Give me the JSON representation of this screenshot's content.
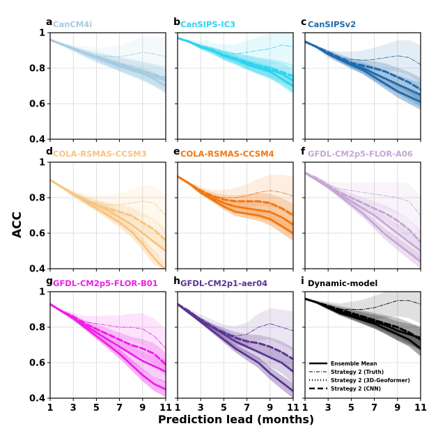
{
  "figure": {
    "ylabel": "ACC",
    "xlabel": "Prediction lead (months)",
    "x_ticks": [
      "1",
      "3",
      "5",
      "7",
      "9",
      "11"
    ],
    "y_ticks": [
      "0.4",
      "0.6",
      "0.8",
      "1"
    ],
    "legend": {
      "ensemble": "Ensemble Mean",
      "truth": "Strategy 2 (Truth)",
      "geo": "Strategy 2 (3D-Geoformer)",
      "cnn": "Strategy 2 (CNN)"
    }
  },
  "chart_data": [
    {
      "type": "line",
      "letter": "a",
      "title": "CanCM4i",
      "color": "#a6cbe0",
      "x": [
        1,
        2,
        3,
        4,
        5,
        6,
        7,
        8,
        9,
        10,
        11
      ],
      "xlim": [
        1,
        11
      ],
      "ylim": [
        0.4,
        1.0
      ],
      "series": [
        {
          "name": "Ensemble Mean",
          "values": [
            0.96,
            0.935,
            0.91,
            0.885,
            0.86,
            0.835,
            0.81,
            0.79,
            0.77,
            0.74,
            0.7
          ]
        },
        {
          "name": "Strategy 2 (Truth)",
          "values": [
            0.96,
            0.935,
            0.91,
            0.89,
            0.87,
            0.865,
            0.865,
            0.875,
            0.89,
            0.88,
            0.865
          ]
        },
        {
          "name": "Strategy 2 (3D-Geoformer)",
          "values": [
            0.96,
            0.935,
            0.91,
            0.885,
            0.86,
            0.84,
            0.82,
            0.8,
            0.78,
            0.755,
            0.73
          ]
        },
        {
          "name": "Strategy 2 (CNN)",
          "values": [
            0.96,
            0.935,
            0.91,
            0.885,
            0.865,
            0.845,
            0.825,
            0.805,
            0.785,
            0.765,
            0.745
          ]
        }
      ]
    },
    {
      "type": "line",
      "letter": "b",
      "title": "CanSIPS-IC3",
      "color": "#2fd3ef",
      "x": [
        1,
        2,
        3,
        4,
        5,
        6,
        7,
        8,
        9,
        10,
        11
      ],
      "xlim": [
        1,
        11
      ],
      "ylim": [
        0.4,
        1.0
      ],
      "series": [
        {
          "name": "Ensemble Mean",
          "values": [
            0.97,
            0.95,
            0.92,
            0.9,
            0.87,
            0.85,
            0.82,
            0.8,
            0.78,
            0.74,
            0.7
          ]
        },
        {
          "name": "Strategy 2 (Truth)",
          "values": [
            0.97,
            0.95,
            0.93,
            0.91,
            0.89,
            0.88,
            0.89,
            0.9,
            0.91,
            0.93,
            0.92
          ]
        },
        {
          "name": "Strategy 2 (3D-Geoformer)",
          "values": [
            0.97,
            0.95,
            0.92,
            0.9,
            0.87,
            0.85,
            0.83,
            0.81,
            0.79,
            0.77,
            0.73
          ]
        },
        {
          "name": "Strategy 2 (CNN)",
          "values": [
            0.97,
            0.95,
            0.92,
            0.9,
            0.875,
            0.855,
            0.835,
            0.815,
            0.8,
            0.78,
            0.755
          ]
        }
      ]
    },
    {
      "type": "line",
      "letter": "c",
      "title": "CanSIPSv2",
      "color": "#1f6aab",
      "x": [
        1,
        2,
        3,
        4,
        5,
        6,
        7,
        8,
        9,
        10,
        11
      ],
      "xlim": [
        1,
        11
      ],
      "ylim": [
        0.4,
        1.0
      ],
      "series": [
        {
          "name": "Ensemble Mean",
          "values": [
            0.95,
            0.92,
            0.88,
            0.85,
            0.82,
            0.79,
            0.75,
            0.71,
            0.67,
            0.64,
            0.61
          ]
        },
        {
          "name": "Strategy 2 (Truth)",
          "values": [
            0.95,
            0.92,
            0.88,
            0.86,
            0.85,
            0.845,
            0.85,
            0.86,
            0.87,
            0.86,
            0.82
          ]
        },
        {
          "name": "Strategy 2 (3D-Geoformer)",
          "values": [
            0.95,
            0.92,
            0.88,
            0.85,
            0.82,
            0.8,
            0.77,
            0.74,
            0.71,
            0.68,
            0.65
          ]
        },
        {
          "name": "Strategy 2 (CNN)",
          "values": [
            0.95,
            0.92,
            0.89,
            0.86,
            0.83,
            0.815,
            0.8,
            0.78,
            0.75,
            0.72,
            0.68
          ]
        }
      ]
    },
    {
      "type": "line",
      "letter": "d",
      "title": "COLA-RSMAS-CCSM3",
      "color": "#f8c47e",
      "x": [
        1,
        2,
        3,
        4,
        5,
        6,
        7,
        8,
        9,
        10,
        11
      ],
      "xlim": [
        1,
        11
      ],
      "ylim": [
        0.4,
        1.0
      ],
      "series": [
        {
          "name": "Ensemble Mean",
          "values": [
            0.9,
            0.86,
            0.82,
            0.78,
            0.74,
            0.7,
            0.66,
            0.61,
            0.54,
            0.46,
            0.39
          ]
        },
        {
          "name": "Strategy 2 (Truth)",
          "values": [
            0.9,
            0.86,
            0.82,
            0.79,
            0.77,
            0.76,
            0.76,
            0.77,
            0.78,
            0.77,
            0.7
          ]
        },
        {
          "name": "Strategy 2 (3D-Geoformer)",
          "values": [
            0.9,
            0.86,
            0.82,
            0.79,
            0.76,
            0.73,
            0.69,
            0.65,
            0.6,
            0.55,
            0.5
          ]
        },
        {
          "name": "Strategy 2 (CNN)",
          "values": [
            0.9,
            0.86,
            0.82,
            0.79,
            0.76,
            0.74,
            0.72,
            0.7,
            0.66,
            0.62,
            0.56
          ]
        }
      ]
    },
    {
      "type": "line",
      "letter": "e",
      "title": "COLA-RSMAS-CCSM4",
      "color": "#f2760f",
      "x": [
        1,
        2,
        3,
        4,
        5,
        6,
        7,
        8,
        9,
        10,
        11
      ],
      "xlim": [
        1,
        11
      ],
      "ylim": [
        0.4,
        1.0
      ],
      "series": [
        {
          "name": "Ensemble Mean",
          "values": [
            0.92,
            0.88,
            0.83,
            0.79,
            0.75,
            0.72,
            0.71,
            0.7,
            0.68,
            0.64,
            0.6
          ]
        },
        {
          "name": "Strategy 2 (Truth)",
          "values": [
            0.92,
            0.88,
            0.84,
            0.81,
            0.8,
            0.8,
            0.81,
            0.83,
            0.84,
            0.83,
            0.81
          ]
        },
        {
          "name": "Strategy 2 (3D-Geoformer)",
          "values": [
            0.92,
            0.88,
            0.83,
            0.8,
            0.77,
            0.75,
            0.74,
            0.73,
            0.72,
            0.69,
            0.65
          ]
        },
        {
          "name": "Strategy 2 (CNN)",
          "values": [
            0.92,
            0.88,
            0.84,
            0.81,
            0.79,
            0.78,
            0.78,
            0.78,
            0.77,
            0.74,
            0.7
          ]
        }
      ]
    },
    {
      "type": "line",
      "letter": "f",
      "title": "GFDL-CM2p5-FLOR-A06",
      "color": "#c7a6d4",
      "x": [
        1,
        2,
        3,
        4,
        5,
        6,
        7,
        8,
        9,
        10,
        11
      ],
      "xlim": [
        1,
        11
      ],
      "ylim": [
        0.4,
        1.0
      ],
      "series": [
        {
          "name": "Ensemble Mean",
          "values": [
            0.94,
            0.9,
            0.86,
            0.81,
            0.76,
            0.71,
            0.65,
            0.59,
            0.54,
            0.49,
            0.44
          ]
        },
        {
          "name": "Strategy 2 (Truth)",
          "values": [
            0.94,
            0.91,
            0.87,
            0.85,
            0.84,
            0.83,
            0.82,
            0.81,
            0.8,
            0.78,
            0.7
          ]
        },
        {
          "name": "Strategy 2 (3D-Geoformer)",
          "values": [
            0.94,
            0.9,
            0.86,
            0.82,
            0.78,
            0.74,
            0.7,
            0.65,
            0.6,
            0.55,
            0.5
          ]
        },
        {
          "name": "Strategy 2 (CNN)",
          "values": [
            0.94,
            0.91,
            0.87,
            0.83,
            0.8,
            0.77,
            0.74,
            0.71,
            0.67,
            0.62,
            0.55
          ]
        }
      ]
    },
    {
      "type": "line",
      "letter": "g",
      "title": "GFDL-CM2p5-FLOR-B01",
      "color": "#ee1fe8",
      "x": [
        1,
        2,
        3,
        4,
        5,
        6,
        7,
        8,
        9,
        10,
        11
      ],
      "xlim": [
        1,
        11
      ],
      "ylim": [
        0.4,
        1.0
      ],
      "series": [
        {
          "name": "Ensemble Mean",
          "values": [
            0.93,
            0.89,
            0.85,
            0.8,
            0.75,
            0.7,
            0.65,
            0.59,
            0.53,
            0.48,
            0.45
          ]
        },
        {
          "name": "Strategy 2 (Truth)",
          "values": [
            0.93,
            0.89,
            0.86,
            0.83,
            0.82,
            0.81,
            0.8,
            0.8,
            0.79,
            0.75,
            0.68
          ]
        },
        {
          "name": "Strategy 2 (3D-Geoformer)",
          "values": [
            0.93,
            0.89,
            0.85,
            0.81,
            0.77,
            0.73,
            0.69,
            0.65,
            0.61,
            0.58,
            0.55
          ]
        },
        {
          "name": "Strategy 2 (CNN)",
          "values": [
            0.93,
            0.89,
            0.86,
            0.82,
            0.79,
            0.76,
            0.73,
            0.7,
            0.68,
            0.65,
            0.59
          ]
        }
      ]
    },
    {
      "type": "line",
      "letter": "h",
      "title": "GFDL-CM2p1-aer04",
      "color": "#5a3492",
      "x": [
        1,
        2,
        3,
        4,
        5,
        6,
        7,
        8,
        9,
        10,
        11
      ],
      "xlim": [
        1,
        11
      ],
      "ylim": [
        0.4,
        1.0
      ],
      "series": [
        {
          "name": "Ensemble Mean",
          "values": [
            0.93,
            0.88,
            0.83,
            0.78,
            0.73,
            0.68,
            0.64,
            0.6,
            0.54,
            0.49,
            0.44
          ]
        },
        {
          "name": "Strategy 2 (Truth)",
          "values": [
            0.93,
            0.89,
            0.85,
            0.81,
            0.77,
            0.75,
            0.76,
            0.8,
            0.82,
            0.8,
            0.78
          ]
        },
        {
          "name": "Strategy 2 (3D-Geoformer)",
          "values": [
            0.93,
            0.88,
            0.84,
            0.8,
            0.76,
            0.72,
            0.69,
            0.66,
            0.63,
            0.6,
            0.55
          ]
        },
        {
          "name": "Strategy 2 (CNN)",
          "values": [
            0.93,
            0.89,
            0.84,
            0.8,
            0.77,
            0.74,
            0.72,
            0.71,
            0.69,
            0.66,
            0.62
          ]
        }
      ]
    },
    {
      "type": "line",
      "letter": "i",
      "title": "Dynamic-model",
      "color": "#000000",
      "x": [
        1,
        2,
        3,
        4,
        5,
        6,
        7,
        8,
        9,
        10,
        11
      ],
      "xlim": [
        1,
        11
      ],
      "ylim": [
        0.4,
        1.0
      ],
      "legend": "bottom-left",
      "series": [
        {
          "name": "Ensemble Mean",
          "values": [
            0.96,
            0.94,
            0.91,
            0.88,
            0.86,
            0.84,
            0.82,
            0.79,
            0.76,
            0.73,
            0.68
          ]
        },
        {
          "name": "Strategy 2 (Truth)",
          "values": [
            0.96,
            0.94,
            0.92,
            0.9,
            0.9,
            0.9,
            0.91,
            0.93,
            0.95,
            0.95,
            0.93
          ]
        },
        {
          "name": "Strategy 2 (3D-Geoformer)",
          "values": [
            0.96,
            0.94,
            0.91,
            0.89,
            0.87,
            0.85,
            0.83,
            0.81,
            0.78,
            0.76,
            0.74
          ]
        },
        {
          "name": "Strategy 2 (CNN)",
          "values": [
            0.96,
            0.94,
            0.92,
            0.9,
            0.88,
            0.86,
            0.84,
            0.82,
            0.8,
            0.77,
            0.73
          ]
        }
      ]
    }
  ]
}
